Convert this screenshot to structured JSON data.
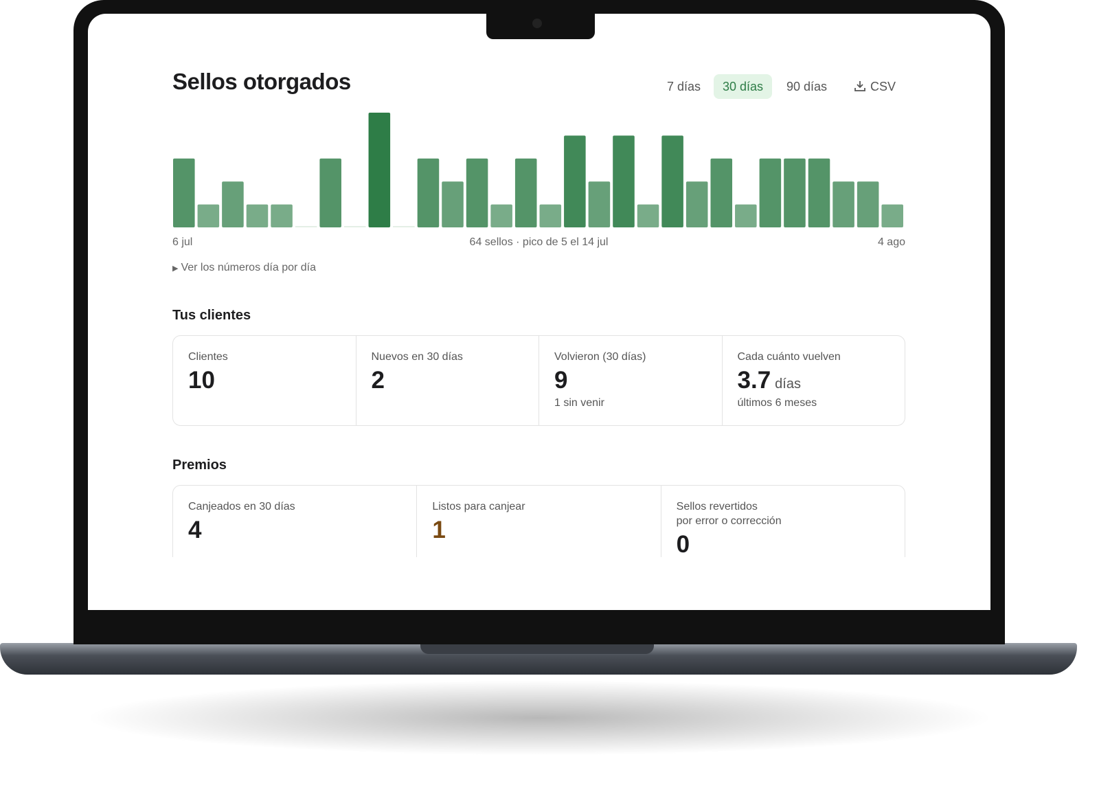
{
  "page": {
    "title": "Sellos otorgados",
    "range_buttons": [
      "7 días",
      "30 días",
      "90 días"
    ],
    "export_button": "CSV",
    "chart_summary": "64 sellos · pico de 5 el 14 jul",
    "details_toggle": "Ver los números día por día",
    "clients": {
      "title": "Tus clientes",
      "cards": [
        {
          "label": "Clientes",
          "value": "10"
        },
        {
          "label": "Nuevos en 30 días",
          "value": "2"
        },
        {
          "label": "Volvieron (30 días)",
          "value": "9",
          "note": "1 sin venir"
        },
        {
          "label": "Cada cuánto vuelven",
          "value": "3.7",
          "unit": "días",
          "note": "últimos 6 meses"
        }
      ]
    },
    "rewards": {
      "title": "Premios",
      "cards": [
        {
          "label": "Canjeados en 30 días",
          "value": "4"
        },
        {
          "label": "Listos para canjear",
          "value": "1"
        },
        {
          "label": "Sellos revertidos",
          "label2": "por error o corrección",
          "value": "0"
        }
      ]
    }
  },
  "chart_data": {
    "type": "bar",
    "categories": [
      "6 jul",
      null,
      null,
      null,
      null,
      null,
      null,
      null,
      null,
      null,
      null,
      null,
      null,
      null,
      null,
      null,
      null,
      null,
      null,
      null,
      null,
      null,
      null,
      null,
      null,
      null,
      null,
      null,
      null,
      "4 ago"
    ],
    "values": [
      3,
      1,
      2,
      1,
      1,
      0,
      3,
      0,
      5,
      0,
      3,
      2,
      3,
      1,
      3,
      1,
      4,
      2,
      4,
      1,
      4,
      2,
      3,
      1,
      3,
      3,
      3,
      2,
      2,
      1
    ],
    "color": "#2e7d47",
    "ylim": [
      0,
      5
    ]
  }
}
